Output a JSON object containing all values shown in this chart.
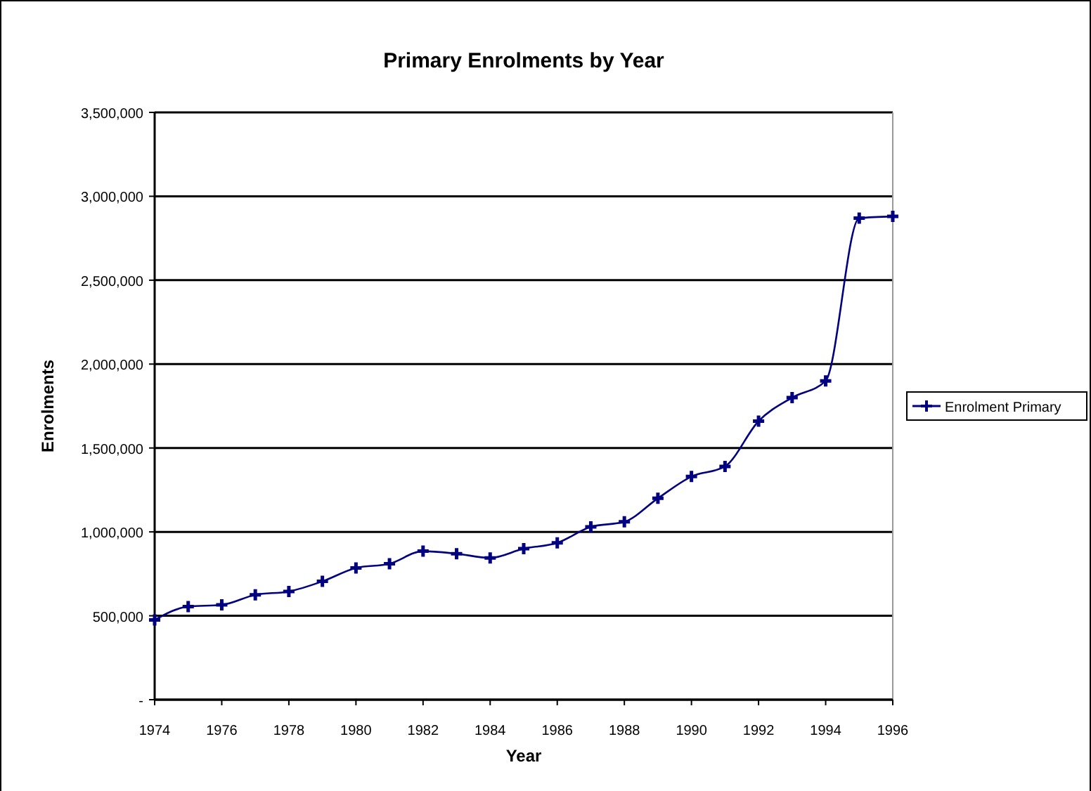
{
  "chart_data": {
    "type": "line",
    "title": "Primary Enrolments by Year",
    "xlabel": "Year",
    "ylabel": "Enrolments",
    "x": [
      1974,
      1975,
      1976,
      1977,
      1978,
      1979,
      1980,
      1981,
      1982,
      1983,
      1984,
      1985,
      1986,
      1987,
      1988,
      1989,
      1990,
      1991,
      1992,
      1993,
      1994,
      1995,
      1996
    ],
    "series": [
      {
        "name": "Enrolment Primary",
        "color": "#000080",
        "values": [
          475000,
          555000,
          565000,
          625000,
          645000,
          705000,
          785000,
          810000,
          885000,
          870000,
          845000,
          900000,
          935000,
          1030000,
          1060000,
          1200000,
          1330000,
          1390000,
          1660000,
          1800000,
          1900000,
          2870000,
          2880000
        ]
      }
    ],
    "xlim": [
      1974,
      1996
    ],
    "xticks": [
      1974,
      1976,
      1978,
      1980,
      1982,
      1984,
      1986,
      1988,
      1990,
      1992,
      1994,
      1996
    ],
    "ylim": [
      0,
      3500000
    ],
    "yticks": [
      {
        "value": 0,
        "label": "-"
      },
      {
        "value": 500000,
        "label": "500,000"
      },
      {
        "value": 1000000,
        "label": "1,000,000"
      },
      {
        "value": 1500000,
        "label": "1,500,000"
      },
      {
        "value": 2000000,
        "label": "2,000,000"
      },
      {
        "value": 2500000,
        "label": "2,500,000"
      },
      {
        "value": 3000000,
        "label": "3,000,000"
      },
      {
        "value": 3500000,
        "label": "3,500,000"
      }
    ],
    "grid": "y",
    "legend": "right",
    "marker": "cross",
    "line_style": "solid"
  }
}
